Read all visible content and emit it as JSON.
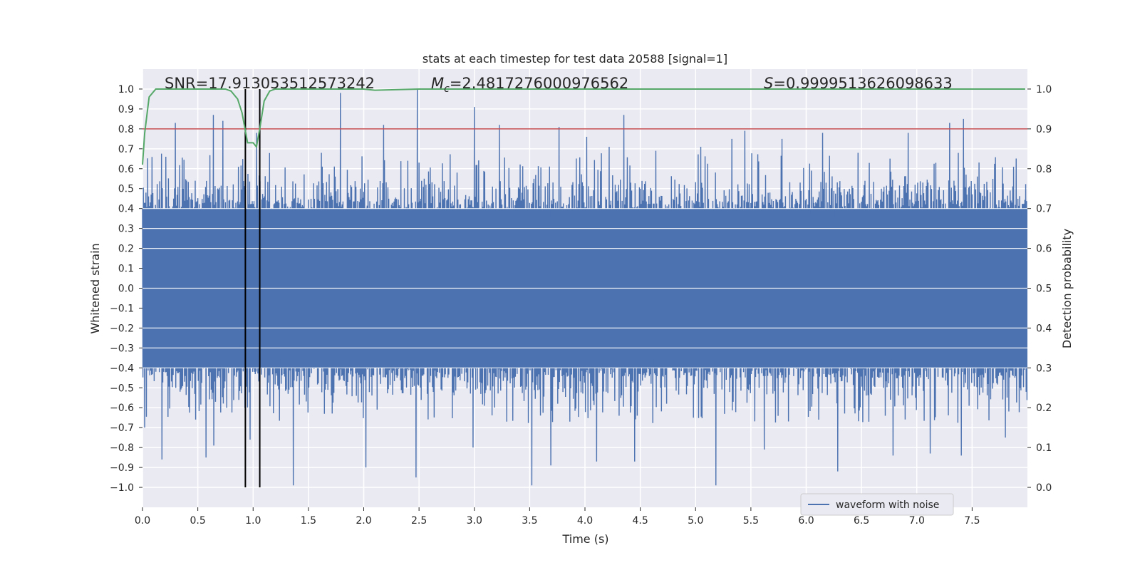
{
  "chart_data": {
    "type": "line",
    "title": "stats at each timestep for test data 20588 [signal=1]",
    "xlabel": "Time (s)",
    "ylabel": "Whitened strain",
    "y2label": "Detection probability",
    "xlim": [
      0.0,
      8.0
    ],
    "ylim": [
      -1.1,
      1.1
    ],
    "y2lim": [
      -0.05,
      1.05
    ],
    "xticks": [
      0.0,
      0.5,
      1.0,
      1.5,
      2.0,
      2.5,
      3.0,
      3.5,
      4.0,
      4.5,
      5.0,
      5.5,
      6.0,
      6.5,
      7.0,
      7.5
    ],
    "xtick_labels": [
      "0.0",
      "0.5",
      "1.0",
      "1.5",
      "2.0",
      "2.5",
      "3.0",
      "3.5",
      "4.0",
      "4.5",
      "5.0",
      "5.5",
      "6.0",
      "6.5",
      "7.0",
      "7.5"
    ],
    "yticks": [
      1.0,
      0.9,
      0.8,
      0.7,
      0.6,
      0.5,
      0.4,
      0.3,
      0.2,
      0.1,
      0.0,
      -0.1,
      -0.2,
      -0.3,
      -0.4,
      -0.5,
      -0.6,
      -0.7,
      -0.8,
      -0.9,
      -1.0
    ],
    "ytick_labels": [
      "1.0",
      "0.9",
      "0.8",
      "0.7",
      "0.6",
      "0.5",
      "0.4",
      "0.3",
      "0.2",
      "0.1",
      "0.0",
      "−0.1",
      "−0.2",
      "−0.3",
      "−0.4",
      "−0.5",
      "−0.6",
      "−0.7",
      "−0.8",
      "−0.9",
      "−1.0"
    ],
    "y2ticks": [
      1.0,
      0.9,
      0.8,
      0.7,
      0.6,
      0.5,
      0.4,
      0.3,
      0.2,
      0.1,
      0.0
    ],
    "y2tick_labels": [
      "1.0",
      "0.9",
      "0.8",
      "0.7",
      "0.6",
      "0.5",
      "0.4",
      "0.3",
      "0.2",
      "0.1",
      "0.0"
    ],
    "annotations": {
      "snr": "SNR=17.913053512573242",
      "mc_symbol": "M",
      "mc_sub": "c",
      "mc_value": "=2.4817276000976562",
      "s_symbol": "S",
      "s_value": "=0.9999513626098633"
    },
    "legend": {
      "position": "lower right",
      "entries": [
        "waveform with noise"
      ]
    },
    "threshold": {
      "value": 0.9,
      "axis": "y2",
      "color": "#c44e52"
    },
    "vertical_markers": [
      0.93,
      1.06
    ],
    "series": [
      {
        "name": "waveform with noise",
        "axis": "y",
        "color": "#4c72b0",
        "sample_rate": 256,
        "duration": 8.0,
        "core_amplitude": 0.4,
        "peaks": [
          {
            "x": 0.03,
            "y": 0.48
          },
          {
            "x": 0.21,
            "y": 0.66
          },
          {
            "x": 0.3,
            "y": 0.83
          },
          {
            "x": 0.4,
            "y": 0.54
          },
          {
            "x": 0.64,
            "y": 0.87
          },
          {
            "x": 0.73,
            "y": 0.84
          },
          {
            "x": 0.87,
            "y": 0.61
          },
          {
            "x": 1.03,
            "y": 0.78
          },
          {
            "x": 1.79,
            "y": 0.98
          },
          {
            "x": 2.18,
            "y": 0.82
          },
          {
            "x": 2.49,
            "y": 1.0
          },
          {
            "x": 3.0,
            "y": 0.91
          },
          {
            "x": 3.23,
            "y": 0.82
          },
          {
            "x": 3.77,
            "y": 0.81
          },
          {
            "x": 4.02,
            "y": 0.76
          },
          {
            "x": 4.22,
            "y": 0.71
          },
          {
            "x": 4.35,
            "y": 0.87
          },
          {
            "x": 4.64,
            "y": 0.69
          },
          {
            "x": 5.05,
            "y": 0.71
          },
          {
            "x": 5.33,
            "y": 0.75
          },
          {
            "x": 5.45,
            "y": 0.79
          },
          {
            "x": 5.78,
            "y": 0.75
          },
          {
            "x": 6.15,
            "y": 0.78
          },
          {
            "x": 6.92,
            "y": 0.78
          },
          {
            "x": 7.3,
            "y": 0.83
          },
          {
            "x": 7.42,
            "y": 0.85
          },
          {
            "x": 7.88,
            "y": 0.61
          }
        ],
        "troughs": [
          {
            "x": 0.02,
            "y": -0.7
          },
          {
            "x": 0.17,
            "y": -0.86
          },
          {
            "x": 0.57,
            "y": -0.85
          },
          {
            "x": 0.64,
            "y": -0.79
          },
          {
            "x": 0.97,
            "y": -0.76
          },
          {
            "x": 1.36,
            "y": -0.99
          },
          {
            "x": 2.02,
            "y": -0.9
          },
          {
            "x": 2.47,
            "y": -0.95
          },
          {
            "x": 2.99,
            "y": -0.8
          },
          {
            "x": 3.52,
            "y": -0.99
          },
          {
            "x": 3.69,
            "y": -0.89
          },
          {
            "x": 4.1,
            "y": -0.87
          },
          {
            "x": 4.45,
            "y": -0.87
          },
          {
            "x": 5.18,
            "y": -0.99
          },
          {
            "x": 5.62,
            "y": -0.81
          },
          {
            "x": 6.28,
            "y": -0.92
          },
          {
            "x": 6.78,
            "y": -0.84
          },
          {
            "x": 7.12,
            "y": -0.83
          },
          {
            "x": 7.4,
            "y": -0.84
          },
          {
            "x": 7.8,
            "y": -0.75
          }
        ]
      },
      {
        "name": "detection probability",
        "axis": "y2",
        "color": "#55a868",
        "x": [
          0.0,
          0.02,
          0.06,
          0.12,
          0.2,
          0.4,
          0.6,
          0.75,
          0.8,
          0.86,
          0.9,
          0.95,
          1.0,
          1.03,
          1.06,
          1.1,
          1.15,
          1.2,
          1.3,
          1.5,
          2.0,
          2.1,
          2.5,
          3.0,
          4.0,
          5.0,
          6.0,
          7.0,
          8.0
        ],
        "y": [
          0.81,
          0.89,
          0.98,
          1.0,
          1.0,
          1.0,
          1.0,
          1.0,
          0.995,
          0.975,
          0.94,
          0.865,
          0.865,
          0.855,
          0.9,
          0.97,
          0.995,
          1.0,
          1.0,
          1.0,
          1.0,
          0.997,
          1.0,
          1.0,
          1.0,
          1.0,
          1.0,
          1.0,
          1.0
        ]
      }
    ]
  }
}
